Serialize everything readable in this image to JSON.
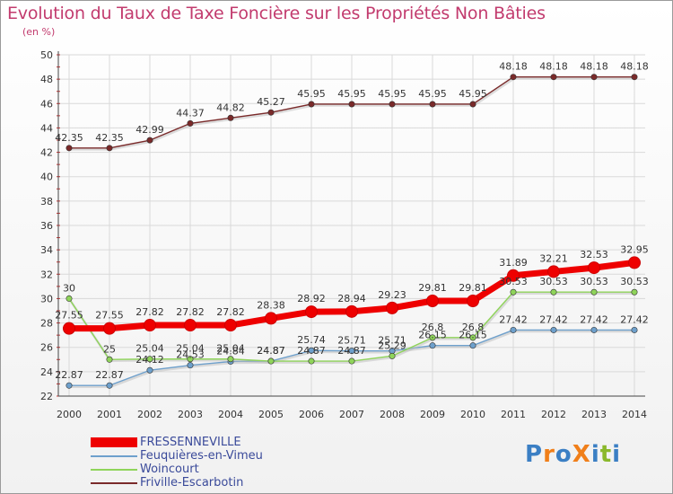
{
  "title": "Evolution du Taux de Taxe Foncière sur les Propriétés Non Bâties",
  "subtitle": "(en %)",
  "logo": {
    "text": "ProXiti",
    "letters": [
      {
        "ch": "P",
        "color": "#3b7fc4"
      },
      {
        "ch": "r",
        "color": "#f07f1a"
      },
      {
        "ch": "o",
        "color": "#3b7fc4"
      },
      {
        "ch": "X",
        "color": "#f07f1a"
      },
      {
        "ch": "i",
        "color": "#3b7fc4"
      },
      {
        "ch": "t",
        "color": "#8ab82b"
      },
      {
        "ch": "i",
        "color": "#3b7fc4"
      }
    ]
  },
  "chart_data": {
    "type": "line",
    "x": [
      "2000",
      "2001",
      "2002",
      "2003",
      "2004",
      "2005",
      "2006",
      "2007",
      "2008",
      "2009",
      "2010",
      "2011",
      "2012",
      "2013",
      "2014"
    ],
    "ylim": [
      22,
      50
    ],
    "yticks": [
      22,
      24,
      26,
      28,
      30,
      32,
      34,
      36,
      38,
      40,
      42,
      44,
      46,
      48,
      50
    ],
    "grid": true,
    "legend_position": "bottom-left",
    "series": [
      {
        "name": "FRESSENNEVILLE",
        "color": "#ee0000",
        "width": 7,
        "labels": [
          "27.55",
          "27.55",
          "27.82",
          "27.82",
          "27.82",
          "28.38",
          "28.92",
          "28.94",
          "29.23",
          "29.81",
          "29.81",
          "31.89",
          "32.21",
          "32.53",
          "32.95"
        ],
        "values": [
          27.55,
          27.55,
          27.82,
          27.82,
          27.82,
          28.38,
          28.92,
          28.94,
          29.23,
          29.81,
          29.81,
          31.89,
          32.21,
          32.53,
          32.95
        ]
      },
      {
        "name": "Feuquières-en-Vimeu",
        "color": "#6ea0cc",
        "width": 1.4,
        "labels": [
          "22.87",
          "22.87",
          "24.12",
          "24.53",
          "24.84",
          "24.87",
          "25.74",
          "25.71",
          "25.71",
          "26.15",
          "26.15",
          "27.42",
          "27.42",
          "27.42",
          "27.42"
        ],
        "values": [
          22.87,
          22.87,
          24.12,
          24.53,
          24.84,
          24.87,
          25.74,
          25.71,
          25.71,
          26.15,
          26.15,
          27.42,
          27.42,
          27.42,
          27.42
        ]
      },
      {
        "name": "Woincourt",
        "color": "#8fd45a",
        "width": 1.4,
        "labels": [
          "30",
          "25",
          "25.04",
          "25.04",
          "25.04",
          "24.87",
          "24.87",
          "24.87",
          "25.29",
          "26.8",
          "26.8",
          "30.53",
          "30.53",
          "30.53",
          "30.53"
        ],
        "values": [
          30,
          25,
          25.04,
          25.04,
          25.04,
          24.87,
          24.87,
          24.87,
          25.29,
          26.8,
          26.8,
          30.53,
          30.53,
          30.53,
          30.53
        ]
      },
      {
        "name": "Friville-Escarbotin",
        "color": "#7a2a2a",
        "width": 1.4,
        "labels": [
          "42.35",
          "42.35",
          "42.99",
          "44.37",
          "44.82",
          "45.27",
          "45.95",
          "45.95",
          "45.95",
          "45.95",
          "45.95",
          "48.18",
          "48.18",
          "48.18",
          "48.18"
        ],
        "values": [
          42.35,
          42.35,
          42.99,
          44.37,
          44.82,
          45.27,
          45.95,
          45.95,
          45.95,
          45.95,
          45.95,
          48.18,
          48.18,
          48.18,
          48.18
        ]
      }
    ]
  }
}
